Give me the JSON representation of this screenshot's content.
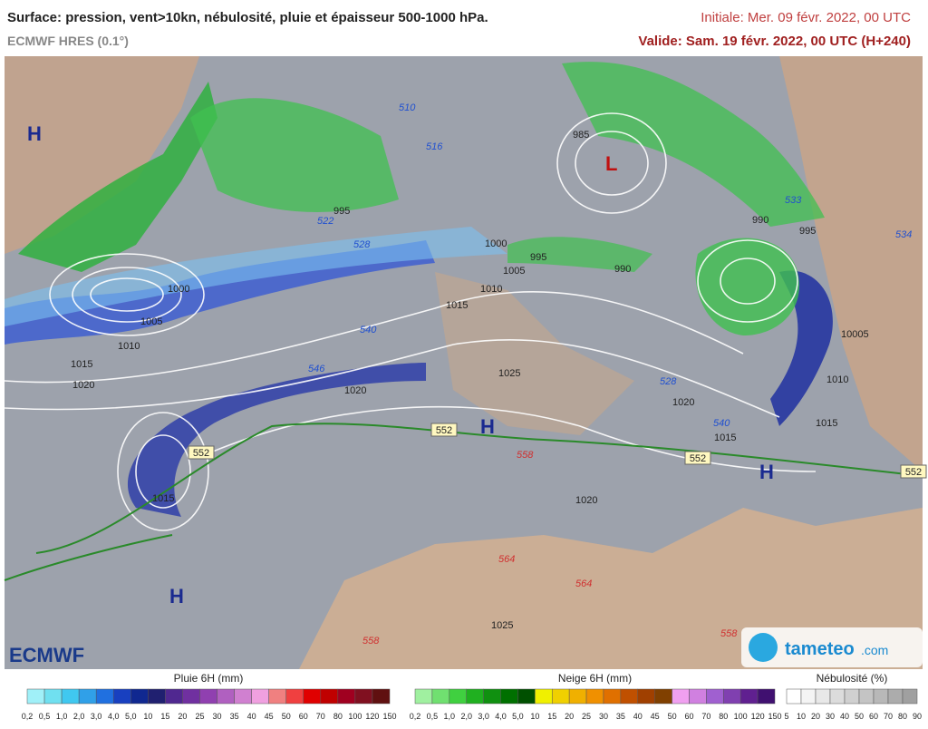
{
  "header": {
    "title": "Surface: pression, vent>10kn, nébulosité, pluie et épaisseur 500-1000 hPa.",
    "model": "ECMWF HRES (0.1°)",
    "initial": "Initiale: Mer. 09 févr. 2022, 00 UTC",
    "valid": "Valide: Sam. 19 févr. 2022, 00 UTC (H+240)"
  },
  "map": {
    "pressure_centers": [
      "H",
      "H",
      "H",
      "H",
      "L"
    ],
    "isobar_labels": [
      "1000",
      "1005",
      "1010",
      "1015",
      "1020",
      "1015",
      "1020",
      "1025",
      "1015",
      "1010",
      "1005",
      "1000",
      "995",
      "990",
      "995",
      "985",
      "990",
      "995",
      "10005",
      "1010",
      "1015",
      "1020",
      "1015",
      "1020",
      "1025"
    ],
    "thickness_labels": [
      "510",
      "516",
      "522",
      "528",
      "534",
      "540",
      "546",
      "528",
      "540",
      "533"
    ],
    "warm_labels": [
      "558",
      "564",
      "564",
      "558",
      "558"
    ],
    "box_labels": [
      "552",
      "552",
      "552",
      "552"
    ]
  },
  "legends": [
    {
      "title": "Pluie 6H (mm)",
      "labels": [
        "0,2",
        "0,5",
        "1,0",
        "2,0",
        "3,0",
        "4,0",
        "5,0",
        "10",
        "15",
        "20",
        "25",
        "30",
        "35",
        "40",
        "45",
        "50",
        "60",
        "70",
        "80",
        "100",
        "120",
        "150"
      ],
      "colors": [
        "#a0f0f8",
        "#70e0f0",
        "#40c8f0",
        "#30a0e8",
        "#2070e0",
        "#1840c0",
        "#102890",
        "#202070",
        "#502890",
        "#7030a0",
        "#9040b0",
        "#b060c0",
        "#d080d0",
        "#f0a0e0",
        "#f08080",
        "#f04040",
        "#e00000",
        "#c00000",
        "#a00020",
        "#801020",
        "#601010"
      ]
    },
    {
      "title": "Neige 6H (mm)",
      "labels": [
        "0,2",
        "0,5",
        "1,0",
        "2,0",
        "3,0",
        "4,0",
        "5,0",
        "10",
        "15",
        "20",
        "25",
        "30",
        "35",
        "40",
        "45",
        "50",
        "60",
        "70",
        "80",
        "100",
        "120",
        "150"
      ],
      "colors": [
        "#a0f0a0",
        "#70e070",
        "#40d040",
        "#20b020",
        "#109010",
        "#007000",
        "#005000",
        "#f0f000",
        "#f0d000",
        "#f0b000",
        "#f09000",
        "#e07000",
        "#c05000",
        "#a04000",
        "#804000",
        "#f0a0f0",
        "#d080e0",
        "#a060d0",
        "#8040b0",
        "#602090",
        "#401070"
      ]
    },
    {
      "title": "Nébulosité (%)",
      "labels": [
        "5",
        "10",
        "20",
        "30",
        "40",
        "50",
        "60",
        "70",
        "80",
        "90"
      ],
      "colors": [
        "#ffffff",
        "#f4f4f4",
        "#e8e8e8",
        "#dcdcdc",
        "#d0d0d0",
        "#c4c4c4",
        "#b8b8b8",
        "#acacac",
        "#a0a0a0"
      ]
    }
  ],
  "logos": {
    "ecmwf": "ECMWF",
    "tameteo": "tameteo",
    ".com": ".com"
  }
}
